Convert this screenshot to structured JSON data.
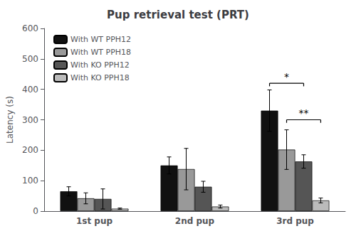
{
  "chart_data": {
    "type": "bar",
    "title": "Pup retrieval test (PRT)",
    "ylabel": "Latency (s)",
    "categories": [
      "1st pup",
      "2nd pup",
      "3rd pup"
    ],
    "series": [
      {
        "name": "With WT PPH12",
        "color": "#111111",
        "values": [
          65,
          150,
          330
        ],
        "errors": [
          15,
          28,
          68
        ]
      },
      {
        "name": "With WT PPH18",
        "color": "#999999",
        "values": [
          42,
          138,
          202
        ],
        "errors": [
          18,
          68,
          65
        ]
      },
      {
        "name": "With KO PPH12",
        "color": "#555555",
        "values": [
          40,
          80,
          163
        ],
        "errors": [
          33,
          18,
          22
        ]
      },
      {
        "name": "With KO PPH18",
        "color": "#bbbbbb",
        "values": [
          8,
          15,
          35
        ],
        "errors": [
          2,
          5,
          8
        ]
      }
    ],
    "ylim": [
      0,
      600
    ],
    "yticks": [
      0,
      100,
      200,
      300,
      400,
      500,
      600
    ],
    "grid": false,
    "legend": "upper left",
    "annotations": [
      {
        "text": "*",
        "category": "3rd pup",
        "from": "With WT PPH12",
        "to": "With KO PPH12",
        "y": 420
      },
      {
        "text": "**",
        "category": "3rd pup",
        "from": "With WT PPH18",
        "to": "With KO PPH18",
        "y": 300
      }
    ]
  }
}
